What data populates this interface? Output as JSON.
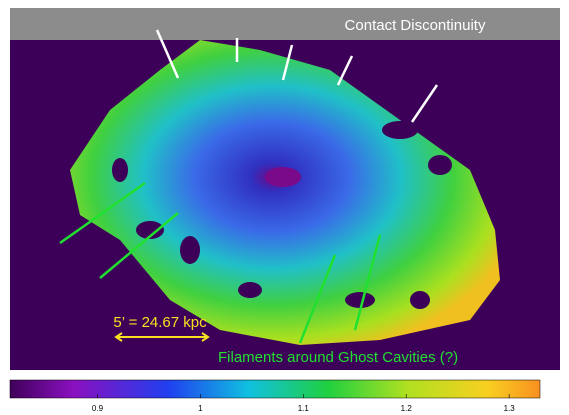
{
  "annotations": {
    "contact": "Contact Discontinuity",
    "filaments": "Filaments around Ghost Cavities (?)",
    "scale": "5’ = 24.67 kpc"
  },
  "colorbar": {
    "range": [
      0.815,
      1.33
    ],
    "ticks": [
      0.9,
      1,
      1.1,
      1.2,
      1.3
    ]
  }
}
